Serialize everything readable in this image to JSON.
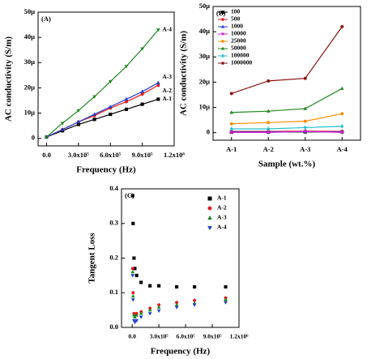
{
  "chart_data": [
    {
      "type": "line",
      "label": "(A)",
      "xlabel": "Frequency (Hz)",
      "ylabel": "AC conductivity (S/m)",
      "x": [
        0,
        150000,
        300000,
        450000,
        600000,
        750000,
        900000,
        1050000
      ],
      "series": [
        {
          "name": "A-1",
          "color": "#000000",
          "marker": "square",
          "values": [
            0.5,
            3,
            5.5,
            7.5,
            9.5,
            11.5,
            13.5,
            15.5
          ]
        },
        {
          "name": "A-2",
          "color": "#e41a1c",
          "marker": "circle",
          "values": [
            0.5,
            3.5,
            6.5,
            9,
            12,
            14.5,
            17.5,
            21
          ]
        },
        {
          "name": "A-3",
          "color": "#1f3fd0",
          "marker": "triangle",
          "values": [
            0.5,
            3.5,
            6.5,
            9.5,
            12.5,
            15.5,
            18.5,
            22
          ]
        },
        {
          "name": "A-4",
          "color": "#1e8a1e",
          "marker": "down-triangle",
          "values": [
            0.5,
            6,
            11,
            16.5,
            22.5,
            28.5,
            35.5,
            43
          ]
        }
      ],
      "xlim": [
        -80000,
        1200000
      ],
      "xticks": [
        {
          "value": 0,
          "label": "0.0"
        },
        {
          "value": 300000,
          "label": "3.0x10⁵"
        },
        {
          "value": 600000,
          "label": "6.0x10⁵"
        },
        {
          "value": 900000,
          "label": "9.0x10⁵"
        },
        {
          "value": 1200000,
          "label": "1.2x10⁶"
        }
      ],
      "ylim": [
        -3,
        50
      ],
      "yticks": [
        0,
        {
          "value": 10,
          "label": "10µ"
        },
        {
          "value": 20,
          "label": "20µ"
        },
        {
          "value": 30,
          "label": "30µ"
        },
        {
          "value": 40,
          "label": "40µ"
        },
        {
          "value": 50,
          "label": "50µ"
        }
      ],
      "legend": "line-end"
    },
    {
      "type": "line",
      "label": "(B)",
      "xlabel": "Sample (wt.%)",
      "ylabel": "AC conductivity (S/m)",
      "categories": [
        "A-1",
        "A-2",
        "A-3",
        "A-4"
      ],
      "series": [
        {
          "name": "100",
          "color": "#000000",
          "marker": "square",
          "values": [
            0.2,
            0.2,
            0.3,
            0.3
          ]
        },
        {
          "name": "500",
          "color": "#e41a1c",
          "marker": "circle",
          "values": [
            0.5,
            0.5,
            0.6,
            0.5
          ]
        },
        {
          "name": "1000",
          "color": "#1f3fd0",
          "marker": "triangle",
          "values": [
            0.3,
            0.3,
            0.4,
            0.3
          ]
        },
        {
          "name": "10000",
          "color": "#d020d0",
          "marker": "down-triangle",
          "values": [
            0.1,
            0.1,
            0.5,
            0.1
          ]
        },
        {
          "name": "25000",
          "color": "#ff8c00",
          "marker": "circle",
          "values": [
            3.5,
            4,
            4.5,
            7.5
          ]
        },
        {
          "name": "50000",
          "color": "#1e8a1e",
          "marker": "triangle",
          "values": [
            8,
            8.5,
            9.5,
            17.5
          ]
        },
        {
          "name": "100000",
          "color": "#20c0d0",
          "marker": "diamond",
          "values": [
            1.5,
            1.5,
            2,
            2.5
          ]
        },
        {
          "name": "1000000",
          "color": "#8b1010",
          "marker": "circle",
          "values": [
            15.5,
            20.5,
            21.5,
            42
          ]
        }
      ],
      "ylim": [
        -3,
        50
      ],
      "yticks": [
        0,
        {
          "value": 10,
          "label": "10µ"
        },
        {
          "value": 20,
          "label": "20µ"
        },
        {
          "value": 30,
          "label": "30µ"
        },
        {
          "value": 40,
          "label": "40µ"
        },
        {
          "value": 50,
          "label": "50µ"
        }
      ],
      "legend": "upper left"
    },
    {
      "type": "scatter",
      "label": "(C)",
      "xlabel": "Frequency (Hz)",
      "ylabel": "Tangent Loss",
      "x": [
        5000,
        10000,
        20000,
        30000,
        50000,
        100000,
        200000,
        300000,
        500000,
        700000,
        1050000
      ],
      "series": [
        {
          "name": "A-1",
          "color": "#000000",
          "marker": "square",
          "values": [
            0.38,
            0.3,
            0.2,
            0.17,
            0.15,
            0.13,
            0.12,
            0.12,
            0.117,
            0.117,
            0.117
          ]
        },
        {
          "name": "A-2",
          "color": "#e41a1c",
          "marker": "circle",
          "values": [
            0.17,
            0.1,
            0.04,
            0.035,
            0.04,
            0.045,
            0.055,
            0.065,
            0.072,
            0.078,
            0.085
          ]
        },
        {
          "name": "A-3",
          "color": "#1e8a1e",
          "marker": "triangle",
          "values": [
            0.16,
            0.09,
            0.035,
            0.03,
            0.035,
            0.04,
            0.05,
            0.058,
            0.065,
            0.07,
            0.08
          ]
        },
        {
          "name": "A-4",
          "color": "#1f3fd0",
          "marker": "down-triangle",
          "values": [
            0.15,
            0.08,
            0.02,
            0.015,
            0.02,
            0.03,
            0.04,
            0.048,
            0.058,
            0.065,
            0.072
          ]
        }
      ],
      "xlim": [
        -120000,
        1200000
      ],
      "xticks": [
        {
          "value": 0,
          "label": "0.0"
        },
        {
          "value": 300000,
          "label": "3.0x10⁵"
        },
        {
          "value": 600000,
          "label": "6.0x10⁵"
        },
        {
          "value": 900000,
          "label": "9.0x10⁵"
        },
        {
          "value": 1200000,
          "label": "1.2x10⁶"
        }
      ],
      "ylim": [
        0,
        0.4
      ],
      "yticks": [
        {
          "value": 0,
          "label": "0.0"
        },
        0.1,
        0.2,
        0.3,
        0.4
      ],
      "legend": "upper right"
    }
  ]
}
